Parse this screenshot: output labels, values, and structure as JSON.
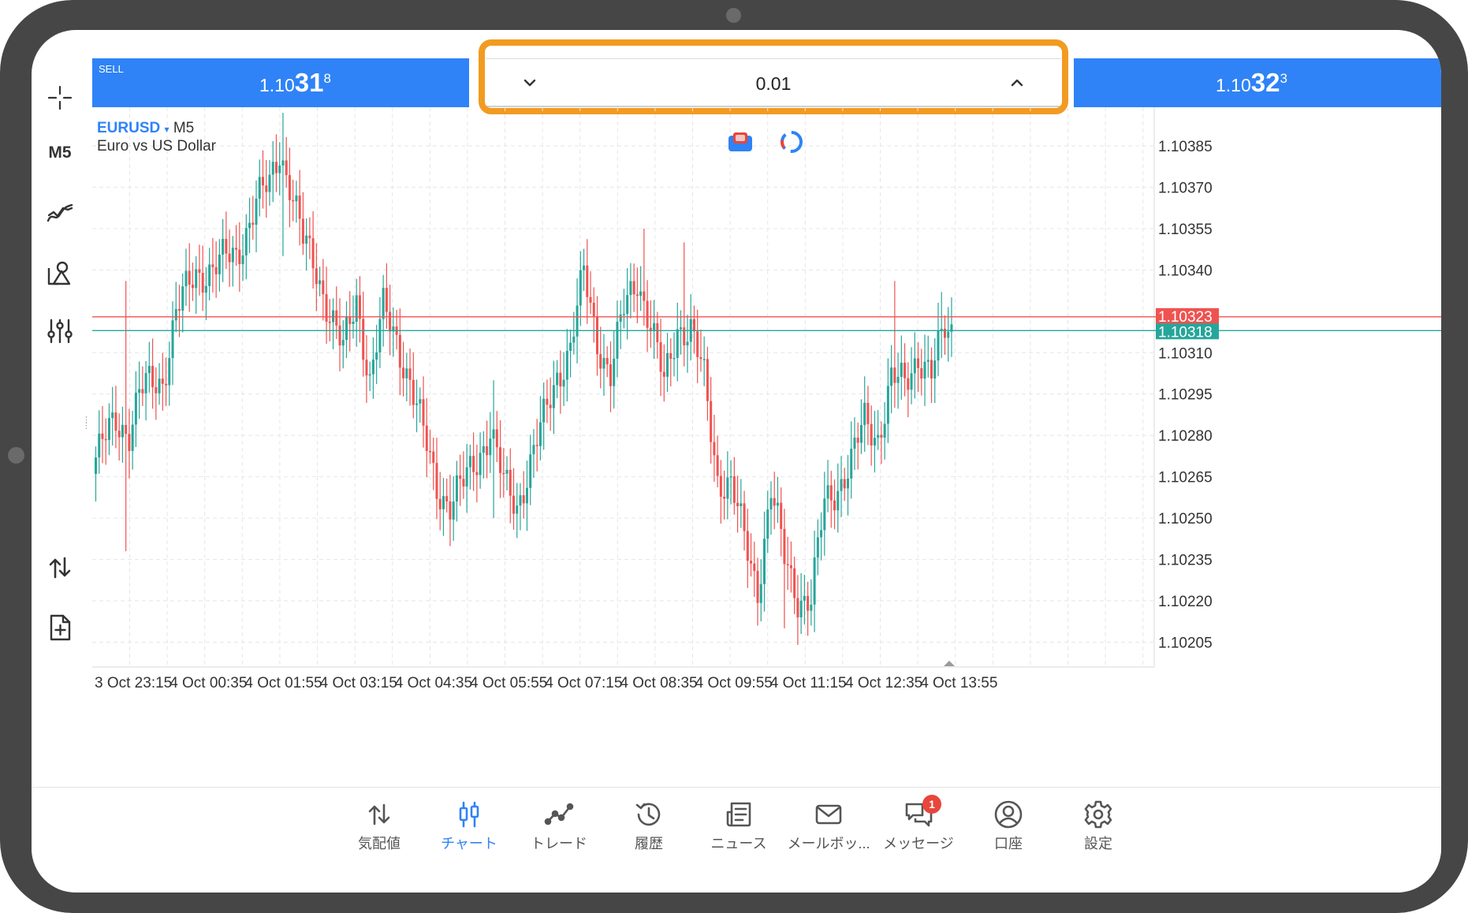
{
  "trade_panel": {
    "sell_label": "SELL",
    "sell_price_prefix": "1.10",
    "sell_price_big": "31",
    "sell_price_sup": "8",
    "buy_price_prefix": "1.10",
    "buy_price_big": "32",
    "buy_price_sup": "3",
    "volume": "0.01"
  },
  "sidebar": {
    "timeframe_label": "M5",
    "tools": [
      "crosshair-icon",
      "timeframe",
      "indicators-icon",
      "objects-icon",
      "settings-sliders-icon",
      "trade-icon",
      "new-order-icon"
    ]
  },
  "chart_header": {
    "symbol": "EURUSD",
    "dropdown_marker": "▾",
    "timeframe": "M5",
    "description": "Euro vs US Dollar"
  },
  "chart_data": {
    "type": "candlestick",
    "title": "EURUSD M5",
    "subtitle": "Euro vs US Dollar",
    "xlabel": "",
    "ylabel": "",
    "y_ticks": [
      "1.10385",
      "1.10370",
      "1.10355",
      "1.10340",
      "1.10310",
      "1.10295",
      "1.10280",
      "1.10265",
      "1.10250",
      "1.10235",
      "1.10220",
      "1.10205"
    ],
    "ylim": [
      1.10196,
      1.10399
    ],
    "x_ticks": [
      "3 Oct 23:15",
      "4 Oct 00:35",
      "4 Oct 01:55",
      "4 Oct 03:15",
      "4 Oct 04:35",
      "4 Oct 05:55",
      "4 Oct 07:15",
      "4 Oct 08:35",
      "4 Oct 09:55",
      "4 Oct 11:15",
      "4 Oct 12:35",
      "4 Oct 13:55"
    ],
    "ask_line": 1.10323,
    "bid_line": 1.10318,
    "ask_label": "1.10323",
    "bid_label": "1.10318",
    "bull_color": "#26a69a",
    "bear_color": "#ef5350",
    "ask_color": "#ef5350",
    "bid_color": "#26a69a",
    "grid": true,
    "close_anchors": [
      [
        0,
        1.10272
      ],
      [
        6,
        1.10285
      ],
      [
        10,
        1.10282
      ],
      [
        13,
        1.10295
      ],
      [
        16,
        1.10298
      ],
      [
        20,
        1.103
      ],
      [
        24,
        1.10325
      ],
      [
        30,
        1.10338
      ],
      [
        36,
        1.10342
      ],
      [
        42,
        1.10345
      ],
      [
        48,
        1.10365
      ],
      [
        52,
        1.1037
      ],
      [
        55,
        1.10384
      ],
      [
        58,
        1.10372
      ],
      [
        62,
        1.1035
      ],
      [
        66,
        1.1034
      ],
      [
        70,
        1.10325
      ],
      [
        74,
        1.1031
      ],
      [
        78,
        1.1033
      ],
      [
        82,
        1.103
      ],
      [
        86,
        1.10325
      ],
      [
        90,
        1.10315
      ],
      [
        94,
        1.103
      ],
      [
        98,
        1.1028
      ],
      [
        102,
        1.10262
      ],
      [
        106,
        1.10255
      ],
      [
        110,
        1.10262
      ],
      [
        114,
        1.10272
      ],
      [
        118,
        1.10282
      ],
      [
        122,
        1.10262
      ],
      [
        126,
        1.10255
      ],
      [
        130,
        1.1027
      ],
      [
        134,
        1.10285
      ],
      [
        138,
        1.10302
      ],
      [
        142,
        1.10312
      ],
      [
        146,
        1.10338
      ],
      [
        150,
        1.10315
      ],
      [
        154,
        1.10302
      ],
      [
        158,
        1.10325
      ],
      [
        162,
        1.10338
      ],
      [
        166,
        1.1032
      ],
      [
        170,
        1.10298
      ],
      [
        174,
        1.1032
      ],
      [
        178,
        1.10318
      ],
      [
        182,
        1.103
      ],
      [
        186,
        1.10265
      ],
      [
        190,
        1.10262
      ],
      [
        194,
        1.10242
      ],
      [
        198,
        1.10225
      ],
      [
        202,
        1.1026
      ],
      [
        206,
        1.10235
      ],
      [
        210,
        1.10222
      ],
      [
        214,
        1.1022
      ],
      [
        218,
        1.10255
      ],
      [
        222,
        1.10262
      ],
      [
        226,
        1.1027
      ],
      [
        230,
        1.10285
      ],
      [
        234,
        1.1028
      ],
      [
        238,
        1.103
      ],
      [
        242,
        1.10298
      ],
      [
        246,
        1.1031
      ],
      [
        250,
        1.10302
      ],
      [
        254,
        1.10318
      ],
      [
        256,
        1.10318
      ]
    ],
    "spikes": [
      [
        9,
        1.10238,
        1.10336
      ],
      [
        56,
        1.10345,
        1.10397
      ],
      [
        119,
        1.1025,
        1.103
      ],
      [
        164,
        1.1032,
        1.10355
      ],
      [
        176,
        1.10305,
        1.1035
      ],
      [
        206,
        1.1021,
        1.1025
      ],
      [
        239,
        1.1029,
        1.10336
      ],
      [
        253,
        1.1031,
        1.10332
      ]
    ]
  },
  "bottom_nav": {
    "items": [
      {
        "label": "気配値",
        "icon": "quotes-arrows-icon"
      },
      {
        "label": "チャート",
        "icon": "chart-candles-icon"
      },
      {
        "label": "トレード",
        "icon": "trade-line-icon"
      },
      {
        "label": "履歴",
        "icon": "history-clock-icon"
      },
      {
        "label": "ニュース",
        "icon": "news-icon"
      },
      {
        "label": "メールボッ...",
        "icon": "mail-icon"
      },
      {
        "label": "メッセージ",
        "icon": "messages-icon"
      },
      {
        "label": "口座",
        "icon": "account-icon"
      },
      {
        "label": "設定",
        "icon": "settings-gear-icon"
      }
    ],
    "active_label": "チャート",
    "message_badge": "1"
  }
}
